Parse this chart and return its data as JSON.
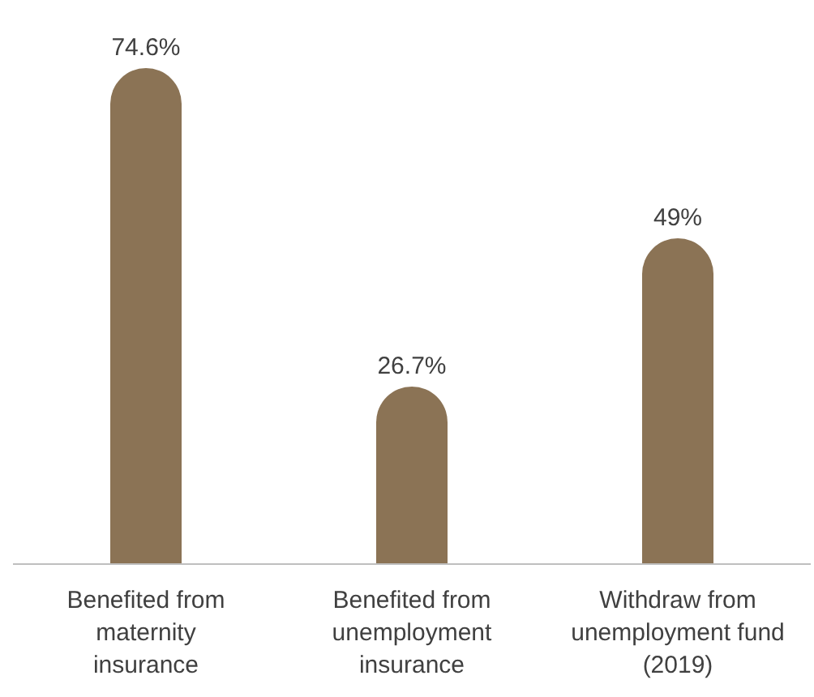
{
  "chart_data": {
    "type": "bar",
    "categories": [
      "Benefited from maternity insurance",
      "Benefited from unemployment insurance",
      "Withdraw from unemployment fund (2019)"
    ],
    "values": [
      74.6,
      26.7,
      49
    ],
    "value_labels": [
      "74.6%",
      "26.7%",
      "49%"
    ],
    "color": "#8b7355"
  }
}
